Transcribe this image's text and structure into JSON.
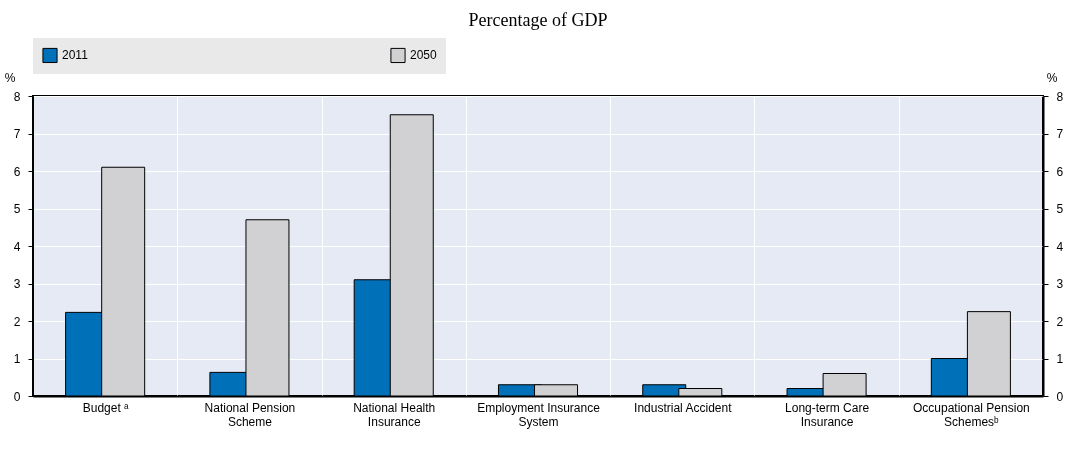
{
  "chart_data": {
    "type": "bar",
    "title": "Percentage of GDP",
    "ylabel": "%",
    "y2label": "%",
    "categories": [
      "Budget ᵃ",
      "National Pension Scheme",
      "National Health Insurance",
      "Employment Insurance System",
      "Industrial Accident",
      "Long-term Care Insurance",
      "Occupational Pension Schemesᵇ"
    ],
    "series": [
      {
        "name": "2011",
        "color": "#0070b8",
        "values": [
          2.23,
          0.63,
          3.1,
          0.3,
          0.3,
          0.2,
          1.0
        ]
      },
      {
        "name": "2050",
        "color": "#d1d1d3",
        "values": [
          6.1,
          4.7,
          7.5,
          0.3,
          0.2,
          0.6,
          2.25
        ]
      }
    ],
    "ylim": [
      0,
      8
    ],
    "yticks": [
      0,
      1,
      2,
      3,
      4,
      5,
      6,
      7,
      8
    ],
    "y2lim": [
      0,
      8
    ],
    "y2ticks": [
      0,
      1,
      2,
      3,
      4,
      5,
      6,
      7,
      8
    ],
    "grid": true,
    "legend": "top"
  }
}
